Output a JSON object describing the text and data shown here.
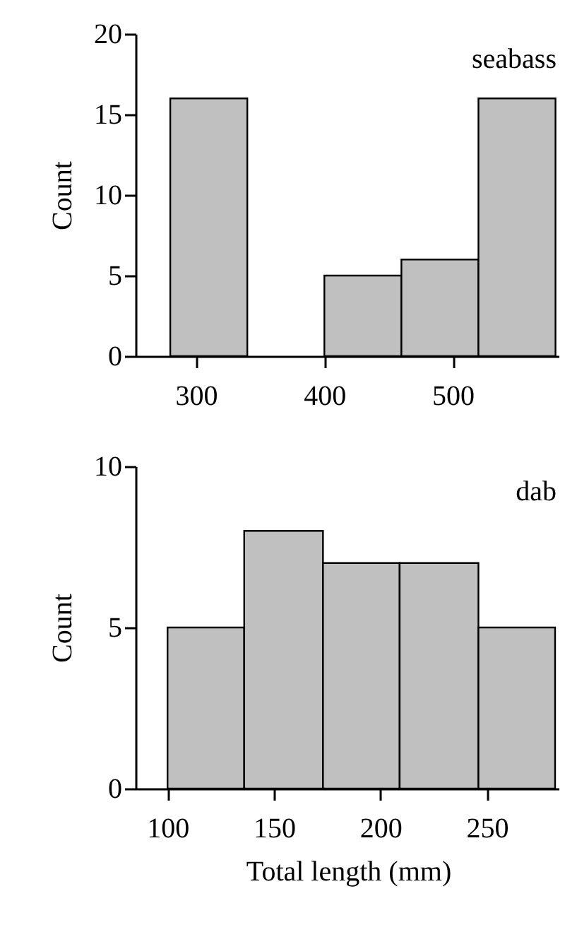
{
  "chart_data": [
    {
      "type": "histogram",
      "ylabel": "Count",
      "annotations": [
        "seabass"
      ],
      "color": "#c0c0c0",
      "bins": [
        280,
        340,
        400,
        460,
        520,
        580
      ],
      "values": [
        16,
        0,
        5,
        6,
        16
      ],
      "xlim": [
        253,
        583
      ],
      "xticks": [
        300,
        400,
        500
      ],
      "ylim": [
        0,
        20
      ],
      "yticks": [
        0,
        5,
        10,
        15,
        20
      ]
    },
    {
      "type": "histogram",
      "xlabel": "Total length (mm)",
      "ylabel": "Count",
      "annotations": [
        "dab"
      ],
      "color": "#c0c0c0",
      "bins": [
        100,
        136,
        173,
        209,
        246,
        282
      ],
      "values": [
        5,
        8,
        7,
        7,
        5
      ],
      "xlim": [
        85,
        284
      ],
      "xticks": [
        100,
        150,
        200,
        250
      ],
      "ylim": [
        0,
        10
      ],
      "yticks": [
        0,
        5,
        10
      ]
    }
  ]
}
